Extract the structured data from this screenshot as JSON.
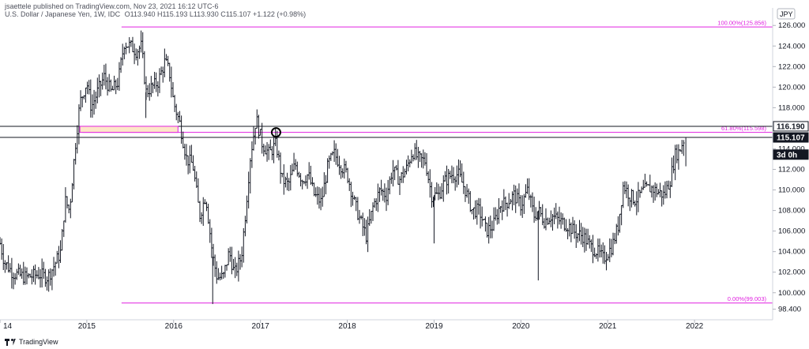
{
  "header": {
    "publisher": "jsaettele published on TradingView.com, Nov 23, 2021 16:12 UTC-6",
    "symbol": "U.S. Dollar / Japanese Yen, 1W, IDC",
    "ohlc": "O113.940 H115.193 L113.930 C115.107 +1.122 (+0.98%)"
  },
  "footer": {
    "brand": "TradingView"
  },
  "chart_data": {
    "type": "bar",
    "title": "U.S. Dollar / Japanese Yen, 1W, IDC",
    "currency": "JPY",
    "x_ticks": [
      "14",
      "2015",
      "2016",
      "2017",
      "2018",
      "2019",
      "2020",
      "2021",
      "2022"
    ],
    "x_range": [
      2014.0,
      2022.9
    ],
    "y_ticks": [
      "98.400",
      "100.000",
      "102.000",
      "104.000",
      "106.000",
      "108.000",
      "110.000",
      "112.000",
      "114.000",
      "116.000",
      "118.000",
      "120.000",
      "122.000",
      "124.000",
      "126.000"
    ],
    "y_range": [
      97.6,
      127.4
    ],
    "fib_levels": [
      {
        "label": "100.00%(125.856)",
        "value": 125.856,
        "x_start": 2015.4
      },
      {
        "label": "61.80%(115.598)",
        "value": 115.598,
        "x_start": 2014.95
      },
      {
        "label": "0.00%(99.003)",
        "value": 99.003,
        "x_start": 2015.4
      }
    ],
    "horizontal_lines": [
      116.19,
      115.107
    ],
    "price_labels": [
      {
        "text": "116.190",
        "value": 116.19,
        "style": "outline"
      },
      {
        "text": "115.107",
        "value": 115.107,
        "style": "filled"
      },
      {
        "text": "3d 0h",
        "value": 113.9,
        "style": "filled"
      }
    ],
    "highlight_zone": {
      "x": [
        2014.92,
        2016.05
      ],
      "y": [
        115.6,
        116.19
      ]
    },
    "circle_marker": {
      "x": 2017.18,
      "y": 115.6
    },
    "price_path": [
      [
        2014.0,
        104.8
      ],
      [
        2014.05,
        103.0
      ],
      [
        2014.15,
        101.9
      ],
      [
        2014.3,
        101.5
      ],
      [
        2014.45,
        101.8
      ],
      [
        2014.55,
        101.5
      ],
      [
        2014.62,
        102.6
      ],
      [
        2014.7,
        104.0
      ],
      [
        2014.75,
        109.0
      ],
      [
        2014.8,
        108.0
      ],
      [
        2014.87,
        114.5
      ],
      [
        2014.92,
        118.5
      ],
      [
        2015.0,
        120.5
      ],
      [
        2015.05,
        118.0
      ],
      [
        2015.12,
        119.5
      ],
      [
        2015.2,
        121.0
      ],
      [
        2015.28,
        119.5
      ],
      [
        2015.36,
        120.5
      ],
      [
        2015.43,
        124.3
      ],
      [
        2015.5,
        124.0
      ],
      [
        2015.57,
        123.5
      ],
      [
        2015.63,
        124.0
      ],
      [
        2015.68,
        119.5
      ],
      [
        2015.75,
        120.0
      ],
      [
        2015.82,
        120.5
      ],
      [
        2015.9,
        122.5
      ],
      [
        2015.95,
        121.5
      ],
      [
        2016.0,
        118.5
      ],
      [
        2016.07,
        116.5
      ],
      [
        2016.15,
        113.0
      ],
      [
        2016.22,
        112.5
      ],
      [
        2016.3,
        107.5
      ],
      [
        2016.37,
        109.5
      ],
      [
        2016.45,
        103.5
      ],
      [
        2016.5,
        101.5
      ],
      [
        2016.57,
        101.5
      ],
      [
        2016.64,
        104.0
      ],
      [
        2016.7,
        101.8
      ],
      [
        2016.78,
        103.5
      ],
      [
        2016.83,
        108.0
      ],
      [
        2016.88,
        113.0
      ],
      [
        2016.95,
        117.0
      ],
      [
        2017.02,
        114.5
      ],
      [
        2017.1,
        113.5
      ],
      [
        2017.18,
        114.5
      ],
      [
        2017.25,
        111.0
      ],
      [
        2017.32,
        110.5
      ],
      [
        2017.4,
        112.5
      ],
      [
        2017.48,
        111.0
      ],
      [
        2017.55,
        111.5
      ],
      [
        2017.62,
        109.5
      ],
      [
        2017.7,
        108.8
      ],
      [
        2017.78,
        112.5
      ],
      [
        2017.85,
        113.5
      ],
      [
        2017.92,
        112.5
      ],
      [
        2018.0,
        111.5
      ],
      [
        2018.08,
        108.8
      ],
      [
        2018.15,
        107.0
      ],
      [
        2018.22,
        105.5
      ],
      [
        2018.3,
        108.5
      ],
      [
        2018.38,
        110.0
      ],
      [
        2018.45,
        109.5
      ],
      [
        2018.52,
        112.0
      ],
      [
        2018.6,
        111.0
      ],
      [
        2018.68,
        112.0
      ],
      [
        2018.75,
        113.8
      ],
      [
        2018.82,
        113.0
      ],
      [
        2018.9,
        112.8
      ],
      [
        2018.97,
        109.5
      ],
      [
        2019.05,
        109.5
      ],
      [
        2019.12,
        110.8
      ],
      [
        2019.2,
        111.5
      ],
      [
        2019.28,
        111.5
      ],
      [
        2019.36,
        110.0
      ],
      [
        2019.44,
        108.0
      ],
      [
        2019.52,
        108.0
      ],
      [
        2019.6,
        106.0
      ],
      [
        2019.68,
        106.5
      ],
      [
        2019.76,
        108.5
      ],
      [
        2019.84,
        108.8
      ],
      [
        2019.92,
        109.5
      ],
      [
        2020.0,
        108.5
      ],
      [
        2020.08,
        110.0
      ],
      [
        2020.15,
        107.5
      ],
      [
        2020.2,
        108.0
      ],
      [
        2020.27,
        107.0
      ],
      [
        2020.35,
        107.5
      ],
      [
        2020.45,
        107.0
      ],
      [
        2020.55,
        106.5
      ],
      [
        2020.63,
        105.8
      ],
      [
        2020.72,
        105.5
      ],
      [
        2020.8,
        104.5
      ],
      [
        2020.88,
        104.0
      ],
      [
        2020.95,
        103.3
      ],
      [
        2021.05,
        104.5
      ],
      [
        2021.12,
        106.5
      ],
      [
        2021.18,
        110.5
      ],
      [
        2021.25,
        109.5
      ],
      [
        2021.32,
        109.0
      ],
      [
        2021.42,
        110.0
      ],
      [
        2021.5,
        110.2
      ],
      [
        2021.58,
        109.8
      ],
      [
        2021.65,
        109.5
      ],
      [
        2021.72,
        111.0
      ],
      [
        2021.78,
        113.5
      ],
      [
        2021.82,
        113.7
      ],
      [
        2021.87,
        114.8
      ],
      [
        2021.89,
        115.1
      ]
    ]
  }
}
